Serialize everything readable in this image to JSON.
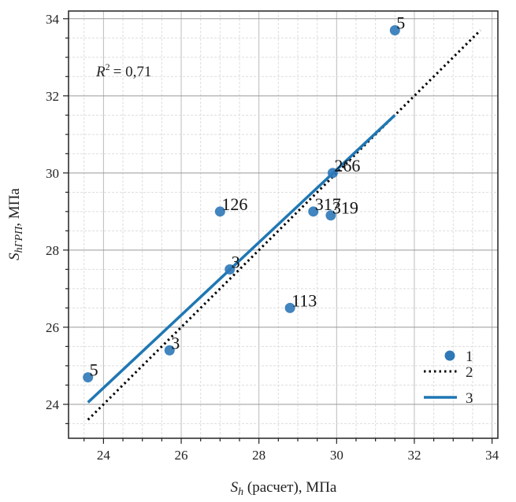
{
  "chart_data": {
    "type": "scatter",
    "title": "",
    "r2_label": "= 0,71",
    "r2_prefix": "R",
    "r2_sup": "2",
    "xlabel": {
      "main": "S",
      "sub": "h",
      "rest": " (расчет), МПа"
    },
    "ylabel": {
      "main": "S",
      "sub": "hГРП",
      "rest": ", МПа"
    },
    "xlim": [
      23.1,
      34.15
    ],
    "ylim": [
      23.12,
      34.2
    ],
    "xticks": [
      24,
      26,
      28,
      30,
      32,
      34
    ],
    "yticks": [
      24,
      26,
      28,
      30,
      32,
      34
    ],
    "minor_step": 0.5,
    "grid": true,
    "points": [
      {
        "x": 23.6,
        "y": 24.7,
        "label": "5"
      },
      {
        "x": 25.7,
        "y": 25.4,
        "label": "3"
      },
      {
        "x": 27.0,
        "y": 29.0,
        "label": "126"
      },
      {
        "x": 27.25,
        "y": 27.5,
        "label": "3"
      },
      {
        "x": 28.8,
        "y": 26.5,
        "label": "113"
      },
      {
        "x": 29.4,
        "y": 29.0,
        "label": "317"
      },
      {
        "x": 29.85,
        "y": 28.9,
        "label": "319"
      },
      {
        "x": 29.9,
        "y": 30.0,
        "label": "266"
      },
      {
        "x": 31.5,
        "y": 33.7,
        "label": "5"
      }
    ],
    "line_identity": {
      "x": [
        23.6,
        33.7
      ],
      "y": [
        23.6,
        33.7
      ]
    },
    "line_fit": {
      "x": [
        23.6,
        31.5
      ],
      "y": [
        24.05,
        31.5
      ]
    },
    "legend": {
      "placement": "bottom-right",
      "entries": [
        "1",
        "2",
        "3"
      ]
    },
    "colors": {
      "point": "#2e78b8",
      "fit": "#1f77b4",
      "identity": "#000000"
    }
  }
}
